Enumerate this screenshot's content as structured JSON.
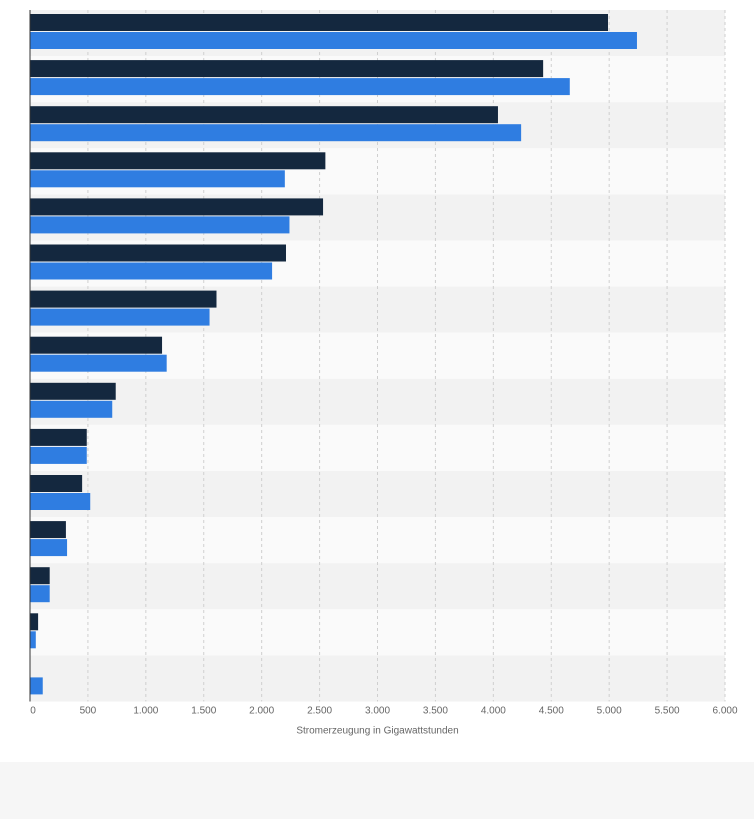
{
  "chart_data": {
    "type": "bar",
    "orientation": "horizontal",
    "xlabel": "Stromerzeugung in Gigawattstunden",
    "xlim": [
      0,
      6000
    ],
    "x_ticks": [
      "0",
      "500",
      "1.000",
      "1.500",
      "2.000",
      "2.500",
      "3.000",
      "3.500",
      "4.000",
      "4.500",
      "5.000",
      "5.500",
      "6.000"
    ],
    "grid": true,
    "categories": [
      "",
      "",
      "",
      "",
      "",
      "",
      "",
      "",
      "",
      "",
      "",
      "",
      "",
      "",
      ""
    ],
    "series": [
      {
        "color": "#14283f",
        "values": [
          4990,
          4430,
          4040,
          2550,
          2530,
          2210,
          1610,
          1140,
          740,
          490,
          450,
          310,
          170,
          70,
          null
        ]
      },
      {
        "color": "#2f7de1",
        "values": [
          5240,
          4660,
          4240,
          2200,
          2240,
          2090,
          1550,
          1180,
          710,
          490,
          520,
          320,
          170,
          50,
          110
        ]
      }
    ]
  }
}
